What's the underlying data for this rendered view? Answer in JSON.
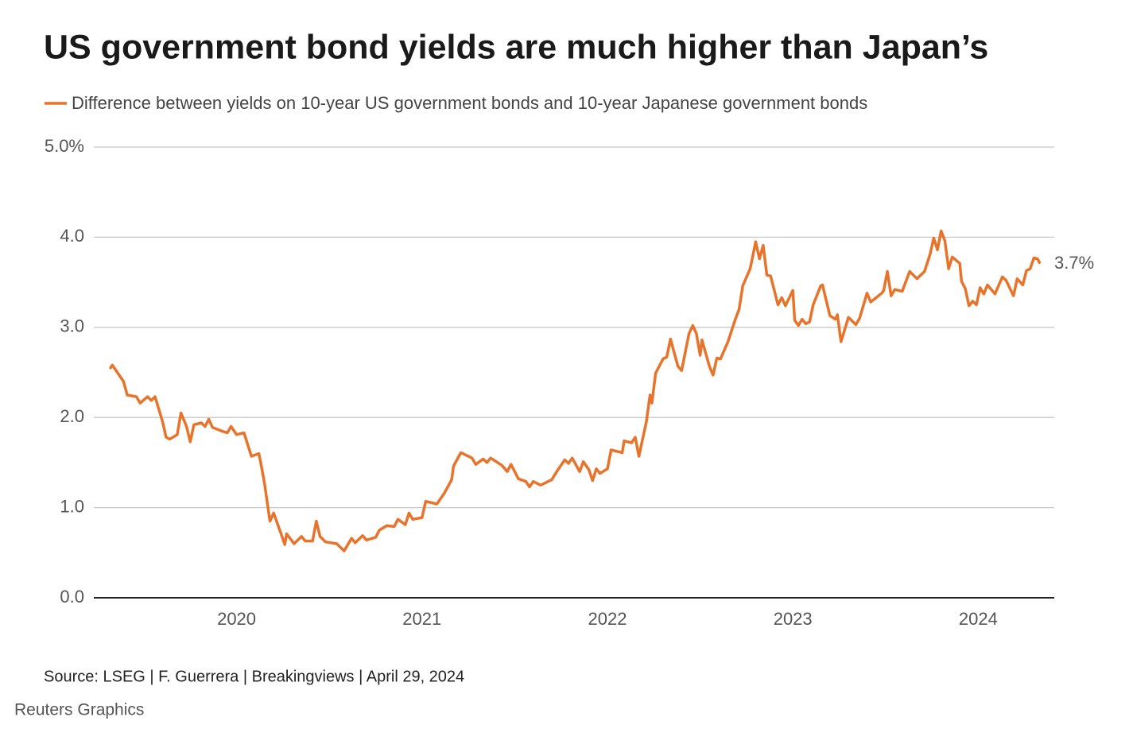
{
  "chart_data": {
    "type": "line",
    "title": "US government bond yields are much higher than Japan’s",
    "source": "Source: LSEG | F. Guerrera | Breakingviews | April 29, 2024",
    "credit": "Reuters Graphics",
    "annotation": {
      "value": 3.7,
      "label": "3.7%"
    },
    "xlim": [
      2019.23,
      2024.41
    ],
    "xticks": [
      2020,
      2021,
      2022,
      2023,
      2024
    ],
    "ylim": [
      0,
      5
    ],
    "yticks": [
      {
        "value": 0,
        "label": "0.0"
      },
      {
        "value": 1,
        "label": "1.0"
      },
      {
        "value": 2,
        "label": "2.0"
      },
      {
        "value": 3,
        "label": "3.0"
      },
      {
        "value": 4,
        "label": "4.0"
      },
      {
        "value": 5,
        "label": "5.0%"
      }
    ],
    "grid": true,
    "x": [
      2019.32,
      2019.33,
      2019.39,
      2019.41,
      2019.46,
      2019.48,
      2019.52,
      2019.54,
      2019.56,
      2019.6,
      2019.62,
      2019.64,
      2019.68,
      2019.7,
      2019.73,
      2019.75,
      2019.77,
      2019.81,
      2019.83,
      2019.85,
      2019.87,
      2019.92,
      2019.95,
      2019.97,
      2020.0,
      2020.04,
      2020.08,
      2020.12,
      2020.13,
      2020.15,
      2020.18,
      2020.2,
      2020.24,
      2020.26,
      2020.27,
      2020.31,
      2020.35,
      2020.37,
      2020.41,
      2020.43,
      2020.45,
      2020.48,
      2020.54,
      2020.58,
      2020.62,
      2020.64,
      2020.68,
      2020.7,
      2020.75,
      2020.77,
      2020.81,
      2020.85,
      2020.87,
      2020.91,
      2020.93,
      2020.95,
      2021.0,
      2021.02,
      2021.08,
      2021.12,
      2021.16,
      2021.17,
      2021.21,
      2021.27,
      2021.29,
      2021.33,
      2021.35,
      2021.37,
      2021.43,
      2021.46,
      2021.48,
      2021.52,
      2021.56,
      2021.58,
      2021.6,
      2021.64,
      2021.7,
      2021.73,
      2021.77,
      2021.79,
      2021.81,
      2021.85,
      2021.87,
      2021.9,
      2021.92,
      2021.94,
      2021.96,
      2022.0,
      2022.02,
      2022.08,
      2022.09,
      2022.13,
      2022.15,
      2022.17,
      2022.21,
      2022.23,
      2022.24,
      2022.26,
      2022.3,
      2022.32,
      2022.34,
      2022.38,
      2022.4,
      2022.44,
      2022.46,
      2022.48,
      2022.5,
      2022.51,
      2022.55,
      2022.57,
      2022.59,
      2022.61,
      2022.65,
      2022.69,
      2022.71,
      2022.73,
      2022.77,
      2022.8,
      2022.82,
      2022.84,
      2022.86,
      2022.88,
      2022.92,
      2022.94,
      2022.96,
      2023.0,
      2023.01,
      2023.03,
      2023.05,
      2023.07,
      2023.09,
      2023.11,
      2023.15,
      2023.16,
      2023.2,
      2023.23,
      2023.24,
      2023.26,
      2023.3,
      2023.34,
      2023.36,
      2023.4,
      2023.42,
      2023.48,
      2023.49,
      2023.51,
      2023.53,
      2023.55,
      2023.59,
      2023.63,
      2023.67,
      2023.71,
      2023.74,
      2023.76,
      2023.78,
      2023.8,
      2023.82,
      2023.84,
      2023.86,
      2023.9,
      2023.91,
      2023.93,
      2023.95,
      2023.97,
      2023.99,
      2024.01,
      2024.03,
      2024.05,
      2024.09,
      2024.13,
      2024.15,
      2024.19,
      2024.21,
      2024.24,
      2024.26,
      2024.28,
      2024.3,
      2024.32,
      2024.33
    ],
    "series": [
      {
        "name": "Difference between yields on 10-year US government bonds and 10-year Japanese government bonds",
        "color": "#e8732a",
        "values": [
          2.55,
          2.58,
          2.4,
          2.25,
          2.23,
          2.16,
          2.23,
          2.19,
          2.23,
          1.96,
          1.78,
          1.76,
          1.81,
          2.05,
          1.9,
          1.73,
          1.92,
          1.94,
          1.9,
          1.98,
          1.89,
          1.85,
          1.83,
          1.9,
          1.81,
          1.83,
          1.57,
          1.6,
          1.5,
          1.28,
          0.85,
          0.94,
          0.71,
          0.59,
          0.71,
          0.6,
          0.68,
          0.63,
          0.63,
          0.85,
          0.68,
          0.62,
          0.6,
          0.52,
          0.66,
          0.61,
          0.69,
          0.64,
          0.67,
          0.75,
          0.8,
          0.79,
          0.87,
          0.81,
          0.94,
          0.87,
          0.89,
          1.07,
          1.04,
          1.16,
          1.31,
          1.46,
          1.61,
          1.55,
          1.48,
          1.54,
          1.5,
          1.55,
          1.47,
          1.4,
          1.48,
          1.32,
          1.29,
          1.23,
          1.29,
          1.25,
          1.31,
          1.41,
          1.53,
          1.49,
          1.55,
          1.4,
          1.51,
          1.42,
          1.3,
          1.43,
          1.38,
          1.43,
          1.64,
          1.61,
          1.74,
          1.72,
          1.78,
          1.57,
          1.95,
          2.25,
          2.16,
          2.49,
          2.65,
          2.67,
          2.87,
          2.57,
          2.52,
          2.93,
          3.02,
          2.93,
          2.69,
          2.86,
          2.57,
          2.47,
          2.66,
          2.65,
          2.84,
          3.09,
          3.2,
          3.46,
          3.65,
          3.95,
          3.76,
          3.91,
          3.58,
          3.57,
          3.25,
          3.33,
          3.24,
          3.41,
          3.08,
          3.02,
          3.09,
          3.04,
          3.06,
          3.25,
          3.46,
          3.47,
          3.13,
          3.09,
          3.14,
          2.84,
          3.11,
          3.03,
          3.1,
          3.38,
          3.28,
          3.38,
          3.41,
          3.62,
          3.35,
          3.42,
          3.4,
          3.62,
          3.54,
          3.62,
          3.81,
          3.99,
          3.86,
          4.07,
          3.96,
          3.65,
          3.78,
          3.71,
          3.51,
          3.43,
          3.24,
          3.29,
          3.25,
          3.44,
          3.37,
          3.47,
          3.37,
          3.56,
          3.52,
          3.35,
          3.54,
          3.47,
          3.63,
          3.65,
          3.77,
          3.76,
          3.72
        ]
      }
    ]
  }
}
